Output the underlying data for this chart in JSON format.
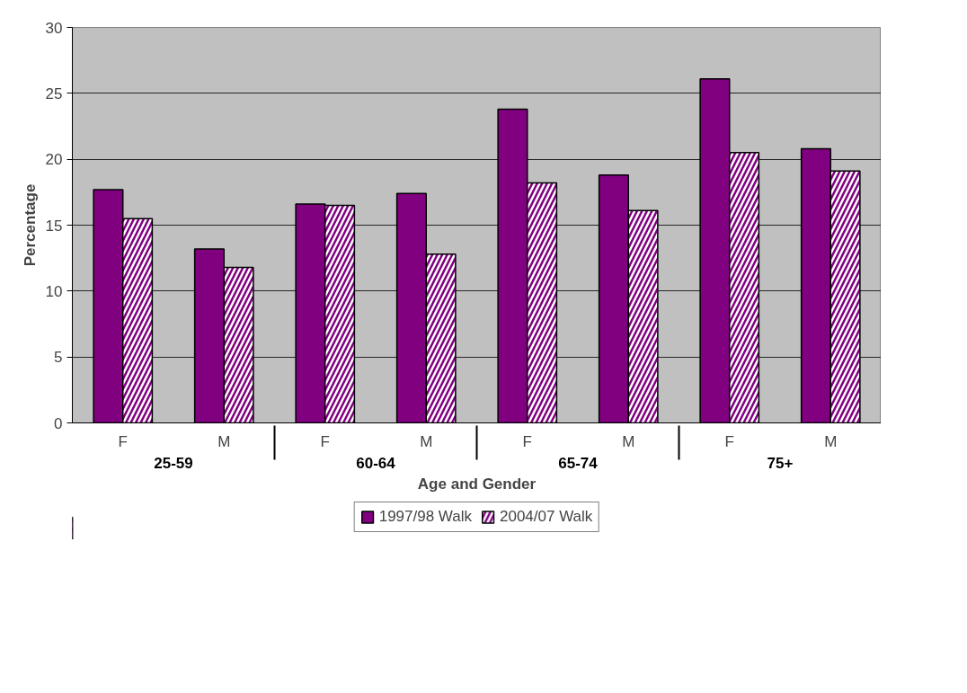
{
  "chart_data": {
    "type": "bar",
    "xlabel": "Age and Gender",
    "ylabel": "Percentage",
    "categories": [
      "F",
      "M",
      "F",
      "M",
      "F",
      "M",
      "F",
      "M"
    ],
    "annotations": [
      "25-59",
      "60-64",
      "65-74",
      "75+"
    ],
    "series": [
      {
        "name": "1997/98 Walk",
        "color": "#800080",
        "values": [
          17.7,
          13.2,
          16.6,
          17.4,
          23.8,
          18.8,
          26.1,
          20.8
        ]
      },
      {
        "name": "2004/07 Walk",
        "color": "#800080",
        "values": [
          15.5,
          11.8,
          16.5,
          12.8,
          18.2,
          16.1,
          20.5,
          19.1
        ]
      }
    ],
    "ylim": [
      0,
      30
    ],
    "yticks": [
      0,
      5,
      10,
      15,
      20,
      25,
      30
    ],
    "grid": "y",
    "legend": "bottom"
  }
}
